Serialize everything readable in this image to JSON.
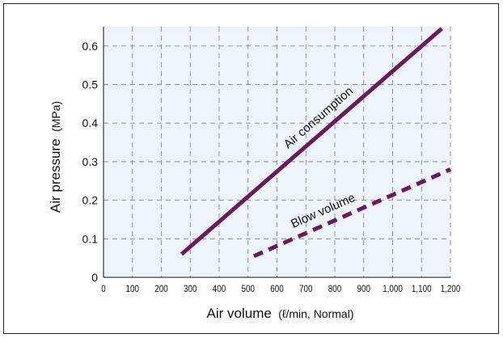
{
  "chart_data": {
    "type": "line",
    "title": "",
    "xlabel": {
      "main": "Air volume",
      "unit": "(ℓ/min, Normal)"
    },
    "ylabel": {
      "main": "Air pressure",
      "unit": "(MPa)"
    },
    "xlim": [
      0,
      1200
    ],
    "ylim": [
      0,
      0.65
    ],
    "x_ticks": [
      0,
      100,
      200,
      300,
      400,
      500,
      600,
      700,
      800,
      900,
      1000,
      1100,
      1200
    ],
    "x_tick_labels": [
      "0",
      "100",
      "200",
      "300",
      "400",
      "500",
      "600",
      "700",
      "800",
      "900",
      "1,000",
      "1,100",
      "1,200"
    ],
    "y_ticks": [
      0,
      0.1,
      0.2,
      0.3,
      0.4,
      0.5,
      0.6
    ],
    "y_tick_labels": [
      "0",
      "0.1",
      "0.2",
      "0.3",
      "0.4",
      "0.5",
      "0.6"
    ],
    "grid": true,
    "colors": {
      "plot_background": "#eef4fb",
      "grid": "#7a7a7a",
      "series": "#6b1a57"
    },
    "series": [
      {
        "name": "Air consumption",
        "style": "solid",
        "x": [
          270,
          1170
        ],
        "y": [
          0.06,
          0.645
        ]
      },
      {
        "name": "Blow volume",
        "style": "dashed",
        "x": [
          520,
          1200
        ],
        "y": [
          0.055,
          0.28
        ]
      }
    ]
  }
}
